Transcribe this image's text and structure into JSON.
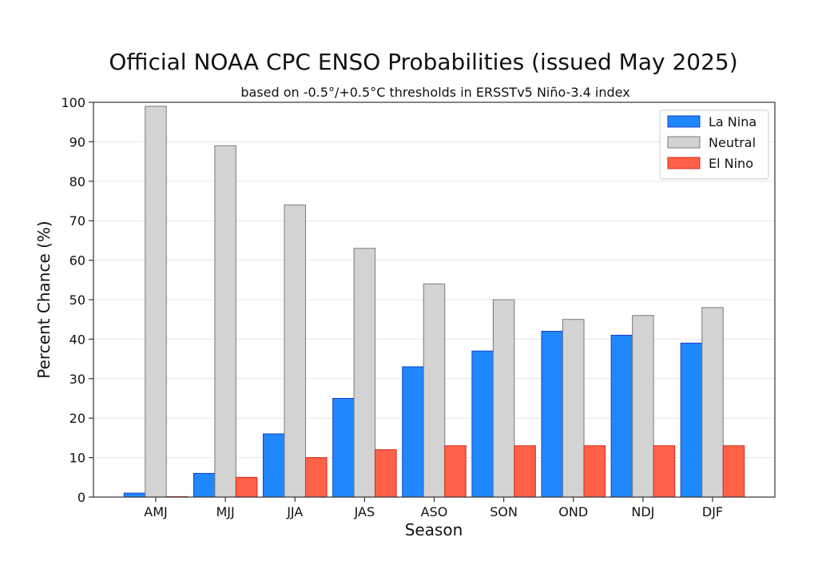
{
  "chart_data": {
    "type": "bar",
    "title": "Official NOAA CPC ENSO Probabilities (issued May 2025)",
    "subtitle": "based on -0.5°/+0.5°C thresholds in ERSSTv5 Niño-3.4 index",
    "xlabel": "Season",
    "ylabel": "Percent Chance (%)",
    "ylim": [
      0,
      100
    ],
    "yticks": [
      0,
      10,
      20,
      30,
      40,
      50,
      60,
      70,
      80,
      90,
      100
    ],
    "grid": true,
    "legend_position": "top-right",
    "categories": [
      "AMJ",
      "MJJ",
      "JJA",
      "JAS",
      "ASO",
      "SON",
      "OND",
      "NDJ",
      "DJF"
    ],
    "series": [
      {
        "name": "La Nina",
        "color": "#1f88ff",
        "edge": "#1240c8",
        "values": [
          1,
          6,
          16,
          25,
          33,
          37,
          42,
          41,
          39
        ]
      },
      {
        "name": "Neutral",
        "color": "#d3d3d3",
        "edge": "#7a7a7a",
        "values": [
          99,
          89,
          74,
          63,
          54,
          50,
          45,
          46,
          48
        ]
      },
      {
        "name": "El Nino",
        "color": "#ff6048",
        "edge": "#d42a1a",
        "values": [
          0,
          5,
          10,
          12,
          13,
          13,
          13,
          13,
          13
        ]
      }
    ]
  }
}
